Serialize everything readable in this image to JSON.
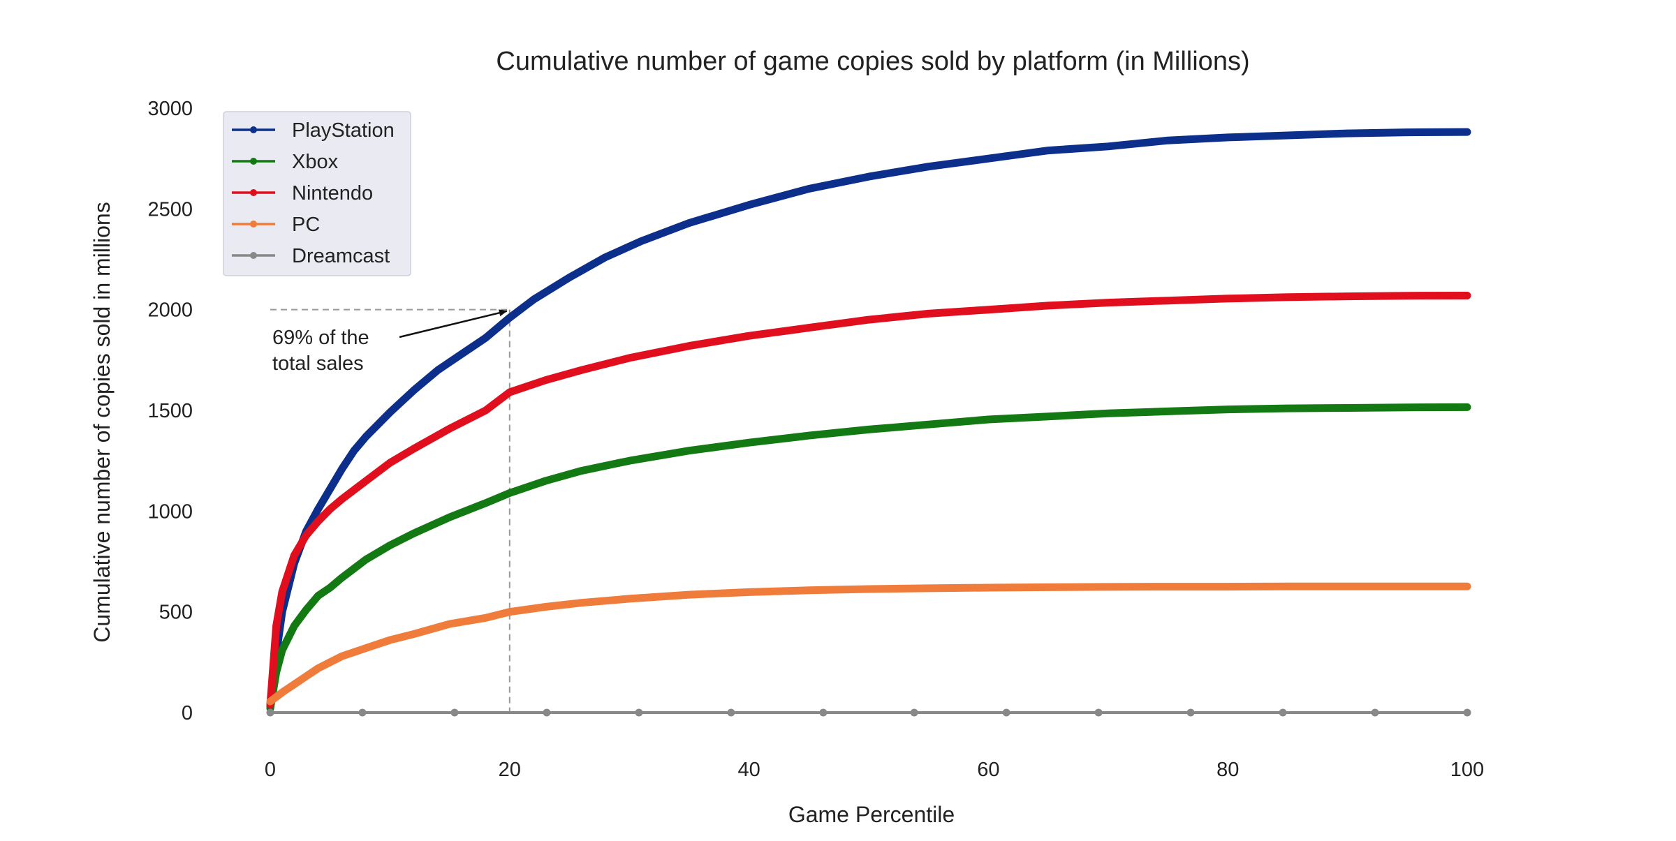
{
  "chart_data": {
    "type": "line",
    "title": "Cumulative number of game copies sold by platform (in Millions)",
    "xlabel": "Game Percentile",
    "ylabel": "Cumulative number of copies sold in millions",
    "xlim": [
      0,
      100
    ],
    "ylim": [
      0,
      3000
    ],
    "xticks": [
      0,
      20,
      40,
      60,
      80,
      100
    ],
    "yticks": [
      0,
      500,
      1000,
      1500,
      2000,
      2500,
      3000
    ],
    "grid": false,
    "legend_position": "top-left",
    "series": [
      {
        "name": "PlayStation",
        "color": "#0b2f8a",
        "x": [
          0,
          0.5,
          1,
          2,
          3,
          4,
          5,
          6,
          7,
          8,
          10,
          12,
          14,
          16,
          18,
          20,
          22,
          25,
          28,
          31,
          35,
          40,
          45,
          50,
          55,
          60,
          65,
          70,
          75,
          80,
          85,
          90,
          95,
          100
        ],
        "y": [
          30,
          290,
          500,
          740,
          900,
          1010,
          1110,
          1210,
          1300,
          1370,
          1490,
          1600,
          1700,
          1780,
          1860,
          1960,
          2050,
          2160,
          2260,
          2340,
          2430,
          2520,
          2600,
          2660,
          2710,
          2750,
          2790,
          2810,
          2840,
          2855,
          2865,
          2875,
          2880,
          2882
        ]
      },
      {
        "name": "Xbox",
        "color": "#137a13",
        "x": [
          0,
          0.5,
          1,
          2,
          3,
          4,
          5,
          6,
          8,
          10,
          12,
          15,
          18,
          20,
          23,
          26,
          30,
          35,
          40,
          45,
          50,
          55,
          60,
          65,
          70,
          75,
          80,
          85,
          90,
          95,
          100
        ],
        "y": [
          20,
          200,
          310,
          430,
          510,
          580,
          620,
          670,
          760,
          830,
          890,
          970,
          1040,
          1090,
          1150,
          1200,
          1250,
          1300,
          1340,
          1375,
          1405,
          1430,
          1455,
          1470,
          1485,
          1495,
          1505,
          1510,
          1512,
          1515,
          1516
        ]
      },
      {
        "name": "Nintendo",
        "color": "#e10f1e",
        "x": [
          0,
          0.5,
          1,
          2,
          3,
          4,
          5,
          6,
          8,
          10,
          12,
          15,
          18,
          20,
          23,
          26,
          30,
          35,
          40,
          45,
          50,
          55,
          60,
          65,
          70,
          75,
          80,
          85,
          90,
          95,
          100
        ],
        "y": [
          40,
          430,
          600,
          780,
          880,
          950,
          1010,
          1060,
          1150,
          1240,
          1310,
          1410,
          1500,
          1590,
          1650,
          1700,
          1760,
          1820,
          1870,
          1910,
          1950,
          1980,
          2000,
          2020,
          2035,
          2045,
          2055,
          2062,
          2066,
          2069,
          2070
        ]
      },
      {
        "name": "PC",
        "color": "#f07c3c",
        "x": [
          0,
          1,
          2,
          3,
          4,
          5,
          6,
          8,
          10,
          12,
          15,
          18,
          20,
          23,
          26,
          30,
          35,
          40,
          45,
          50,
          55,
          60,
          65,
          70,
          75,
          80,
          85,
          90,
          95,
          100
        ],
        "y": [
          55,
          100,
          140,
          180,
          220,
          250,
          280,
          320,
          360,
          390,
          440,
          470,
          500,
          525,
          545,
          565,
          585,
          598,
          607,
          613,
          617,
          620,
          622,
          624,
          625,
          625,
          626,
          626,
          626,
          626
        ]
      },
      {
        "name": "Dreamcast",
        "color": "#888888",
        "x": [
          0,
          7.7,
          15.4,
          23.1,
          30.8,
          38.5,
          46.2,
          53.8,
          61.5,
          69.2,
          76.9,
          84.6,
          92.3,
          100
        ],
        "y": [
          0,
          0,
          0,
          0,
          0,
          0,
          0,
          0,
          0,
          0,
          0,
          0,
          0,
          0
        ]
      }
    ],
    "annotation": {
      "text_lines": [
        "69% of the",
        "total sales"
      ],
      "point": [
        20,
        2000
      ],
      "ref_line_color": "#999999"
    }
  }
}
